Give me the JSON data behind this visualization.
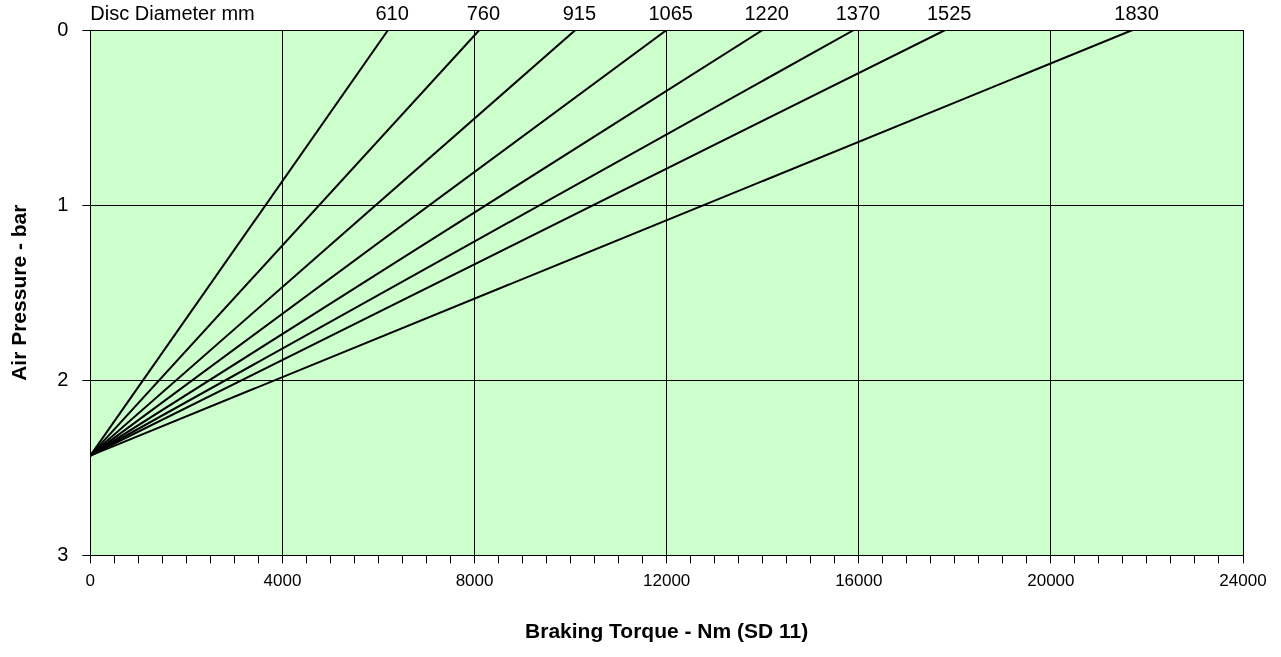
{
  "chart_data": {
    "type": "line",
    "legend_title": "Disc Diameter mm",
    "xlabel": "Braking Torque - Nm (SD 11)",
    "ylabel": "Air Pressure - bar",
    "series": [
      {
        "name": "610",
        "color": "#000000",
        "x": [
          0,
          6200
        ],
        "values": [
          2.43,
          0
        ]
      },
      {
        "name": "760",
        "color": "#000000",
        "x": [
          0,
          8100
        ],
        "values": [
          2.43,
          0
        ]
      },
      {
        "name": "915",
        "color": "#000000",
        "x": [
          0,
          10100
        ],
        "values": [
          2.43,
          0
        ]
      },
      {
        "name": "1065",
        "color": "#000000",
        "x": [
          0,
          12000
        ],
        "values": [
          2.43,
          0
        ]
      },
      {
        "name": "1220",
        "color": "#000000",
        "x": [
          0,
          14000
        ],
        "values": [
          2.43,
          0
        ]
      },
      {
        "name": "1370",
        "color": "#000000",
        "x": [
          0,
          15900
        ],
        "values": [
          2.43,
          0
        ]
      },
      {
        "name": "1525",
        "color": "#000000",
        "x": [
          0,
          17800
        ],
        "values": [
          2.43,
          0
        ]
      },
      {
        "name": "1830",
        "color": "#000000",
        "x": [
          0,
          21700
        ],
        "values": [
          2.43,
          0
        ]
      }
    ],
    "xlim": [
      0,
      24000
    ],
    "xticks": [
      0,
      {
        "value": 500,
        "label": null
      },
      {
        "value": 1000,
        "label": null
      },
      {
        "value": 1500,
        "label": null
      },
      {
        "value": 2000,
        "label": null
      },
      {
        "value": 2500,
        "label": null
      },
      {
        "value": 3000,
        "label": null
      },
      {
        "value": 3500,
        "label": null
      },
      4000,
      {
        "value": 4500,
        "label": null
      },
      {
        "value": 5000,
        "label": null
      },
      {
        "value": 5500,
        "label": null
      },
      {
        "value": 6000,
        "label": null
      },
      {
        "value": 6500,
        "label": null
      },
      {
        "value": 7000,
        "label": null
      },
      {
        "value": 7500,
        "label": null
      },
      8000,
      {
        "value": 8500,
        "label": null
      },
      {
        "value": 9000,
        "label": null
      },
      {
        "value": 9500,
        "label": null
      },
      {
        "value": 10000,
        "label": null
      },
      {
        "value": 10500,
        "label": null
      },
      {
        "value": 11000,
        "label": null
      },
      {
        "value": 11500,
        "label": null
      },
      12000,
      {
        "value": 12500,
        "label": null
      },
      {
        "value": 13000,
        "label": null
      },
      {
        "value": 13500,
        "label": null
      },
      {
        "value": 14000,
        "label": null
      },
      {
        "value": 14500,
        "label": null
      },
      {
        "value": 15000,
        "label": null
      },
      {
        "value": 15500,
        "label": null
      },
      16000,
      {
        "value": 16500,
        "label": null
      },
      {
        "value": 17000,
        "label": null
      },
      {
        "value": 17500,
        "label": null
      },
      {
        "value": 18000,
        "label": null
      },
      {
        "value": 18500,
        "label": null
      },
      {
        "value": 19000,
        "label": null
      },
      {
        "value": 19500,
        "label": null
      },
      20000,
      {
        "value": 20500,
        "label": null
      },
      {
        "value": 21000,
        "label": null
      },
      {
        "value": 21500,
        "label": null
      },
      {
        "value": 22000,
        "label": null
      },
      {
        "value": 22500,
        "label": null
      },
      {
        "value": 23000,
        "label": null
      },
      {
        "value": 23500,
        "label": null
      },
      24000
    ],
    "ylim": [
      3,
      0
    ],
    "yticks": [
      0,
      1,
      2,
      3
    ],
    "grid": true,
    "marker": "none",
    "line_style": "solid"
  }
}
